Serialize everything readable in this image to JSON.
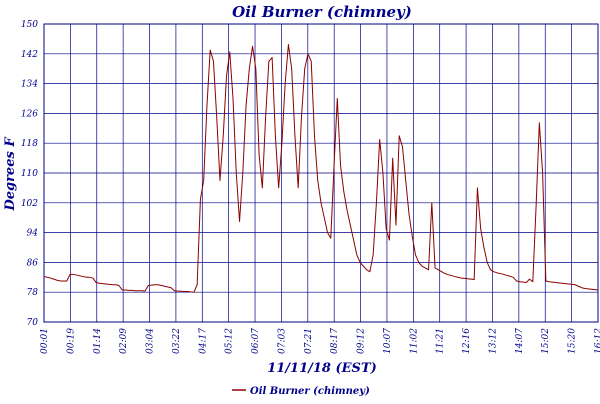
{
  "chart_data": {
    "type": "line",
    "title": "Oil Burner (chimney)",
    "xlabel": "11/11/18 (EST)",
    "ylabel": "Degrees F",
    "ylim": [
      70,
      150
    ],
    "yticks": [
      70,
      78,
      86,
      94,
      102,
      110,
      118,
      126,
      134,
      142,
      150
    ],
    "xticks": [
      "00:01",
      "00:19",
      "01:14",
      "02:09",
      "03:04",
      "03:22",
      "04:17",
      "05:12",
      "06:07",
      "07:03",
      "07:21",
      "08:17",
      "09:12",
      "10:07",
      "11:02",
      "11:21",
      "12:16",
      "13:12",
      "14:07",
      "15:02",
      "15:20",
      "16:12"
    ],
    "grid": true,
    "legend_position": "bottom-center",
    "colors": {
      "series": "#8b0000",
      "grid": "#00008b",
      "text": "#00008b"
    },
    "series": [
      {
        "name": "Oil Burner (chimney)",
        "x_start": "00:01",
        "x_end": "16:12",
        "values": [
          82.2,
          82.0,
          81.8,
          81.5,
          81.2,
          81.0,
          81.0,
          81.0,
          82.8,
          82.8,
          82.6,
          82.4,
          82.2,
          82.0,
          82.0,
          81.8,
          80.6,
          80.4,
          80.3,
          80.2,
          80.1,
          80.0,
          80.0,
          79.8,
          78.6,
          78.6,
          78.5,
          78.5,
          78.4,
          78.4,
          78.4,
          78.3,
          79.8,
          79.9,
          80.0,
          80.0,
          79.8,
          79.6,
          79.4,
          79.2,
          78.4,
          78.3,
          78.3,
          78.2,
          78.2,
          78.1,
          78.0,
          80.0,
          103.0,
          108.0,
          128.0,
          143.0,
          140.0,
          125.0,
          108.0,
          120.0,
          136.0,
          142.5,
          130.0,
          110.0,
          97.0,
          110.0,
          128.0,
          138.0,
          144.0,
          138.0,
          115.0,
          106.0,
          125.0,
          140.0,
          141.0,
          120.0,
          106.0,
          118.0,
          134.0,
          144.5,
          138.0,
          120.0,
          106.0,
          125.0,
          138.0,
          142.0,
          140.0,
          120.0,
          108.0,
          102.0,
          98.0,
          94.0,
          92.5,
          112.0,
          130.0,
          112.0,
          105.0,
          100.0,
          96.0,
          92.0,
          88.0,
          86.0,
          85.0,
          84.0,
          83.5,
          88.0,
          102.0,
          119.0,
          110.0,
          95.0,
          92.0,
          114.0,
          96.0,
          120.0,
          117.0,
          108.0,
          99.0,
          93.0,
          88.0,
          86.0,
          85.0,
          84.5,
          84.0,
          102.0,
          84.5,
          84.0,
          83.5,
          83.0,
          82.7,
          82.5,
          82.2,
          82.0,
          81.8,
          81.7,
          81.6,
          81.5,
          81.4,
          106.0,
          95.0,
          90.0,
          86.0,
          84.0,
          83.5,
          83.2,
          83.0,
          82.8,
          82.5,
          82.3,
          82.0,
          81.0,
          80.8,
          80.7,
          80.6,
          81.5,
          80.8,
          101.0,
          123.5,
          110.0,
          81.0,
          80.8,
          80.7,
          80.6,
          80.5,
          80.4,
          80.3,
          80.2,
          80.1,
          80.0,
          79.6,
          79.2,
          79.0,
          78.9,
          78.8,
          78.7,
          78.6
        ]
      }
    ]
  }
}
